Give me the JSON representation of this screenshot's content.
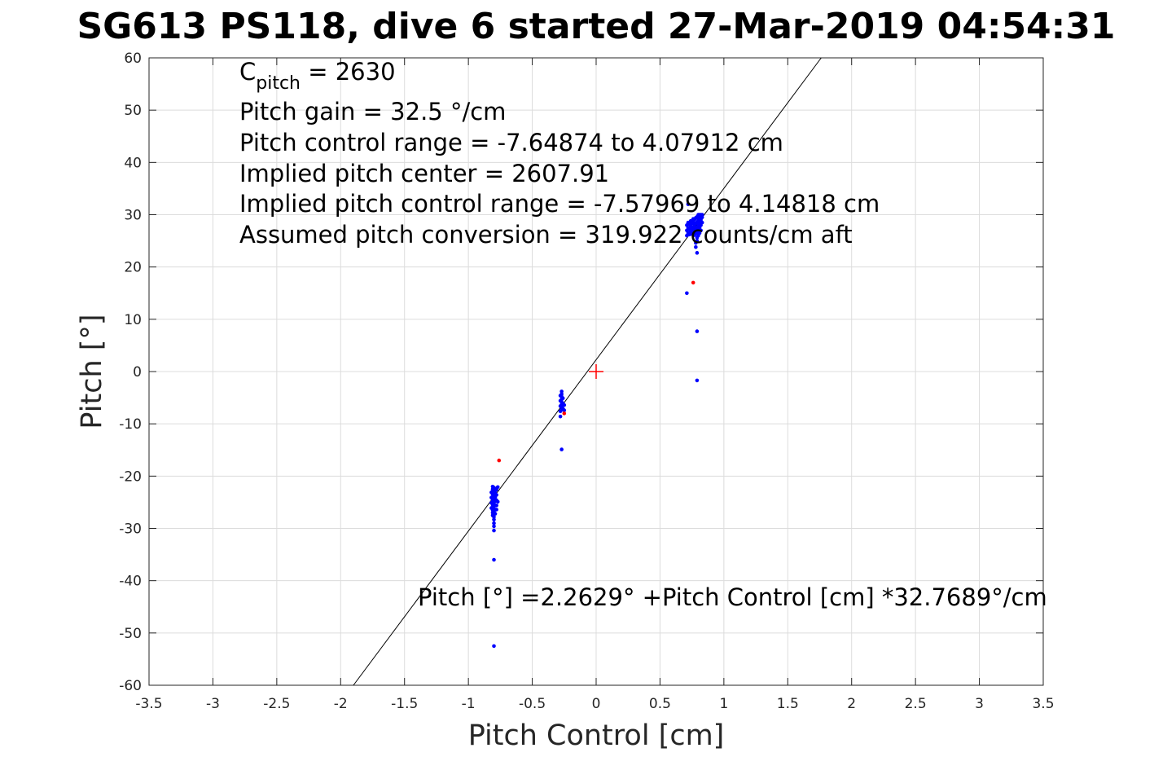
{
  "chart_data": {
    "type": "scatter",
    "title": "SG613 PS118, dive 6 started 27-Mar-2019 04:54:31",
    "xlabel": "Pitch Control [cm]",
    "ylabel": "Pitch [°]",
    "xlim": [
      -3.5,
      3.5
    ],
    "ylim": [
      -60,
      60
    ],
    "xticks": [
      -3.5,
      -3,
      -2.5,
      -2,
      -1.5,
      -1,
      -0.5,
      0,
      0.5,
      1,
      1.5,
      2,
      2.5,
      3,
      3.5
    ],
    "xtick_labels": [
      "-3.5",
      "-3",
      "-2.5",
      "-2",
      "-1.5",
      "-1",
      "-0.5",
      "0",
      "0.5",
      "1",
      "1.5",
      "2",
      "2.5",
      "3",
      "3.5"
    ],
    "yticks": [
      -60,
      -50,
      -40,
      -30,
      -20,
      -10,
      0,
      10,
      20,
      30,
      40,
      50,
      60
    ],
    "ytick_labels": [
      "-60",
      "-50",
      "-40",
      "-30",
      "-20",
      "-10",
      "0",
      "10",
      "20",
      "30",
      "40",
      "50",
      "60"
    ],
    "grid": true,
    "annotations": [
      {
        "main": "C",
        "sub": "pitch",
        "rest": " = 2630"
      },
      {
        "text": "Pitch gain = 32.5 °/cm"
      },
      {
        "text": "Pitch control range = -7.64874 to 4.07912 cm"
      },
      {
        "text": "Implied pitch center = 2607.91"
      },
      {
        "text": "Implied pitch control range = -7.57969 to 4.14818 cm"
      },
      {
        "text": "Assumed pitch conversion = 319.922 counts/cm aft"
      }
    ],
    "fit_label": "Pitch [°] =2.2629° +Pitch Control [cm] *32.7689°/cm",
    "fit_line": {
      "intercept": 2.2629,
      "slope": 32.7689,
      "color": "#000000"
    },
    "center_marker": {
      "x": 0,
      "y": 0,
      "color": "#ff0000"
    },
    "series": [
      {
        "color": "#0000ff",
        "points": [
          [
            -0.81,
            -22.0
          ],
          [
            -0.81,
            -22.5
          ],
          [
            -0.81,
            -23.0
          ],
          [
            -0.81,
            -23.5
          ],
          [
            -0.81,
            -24.0
          ],
          [
            -0.81,
            -24.5
          ],
          [
            -0.81,
            -25.0
          ],
          [
            -0.81,
            -25.5
          ],
          [
            -0.81,
            -26.0
          ],
          [
            -0.81,
            -26.5
          ],
          [
            -0.81,
            -27.0
          ],
          [
            -0.81,
            -27.5
          ],
          [
            -0.8,
            -22.2
          ],
          [
            -0.8,
            -22.8
          ],
          [
            -0.8,
            -23.3
          ],
          [
            -0.8,
            -23.8
          ],
          [
            -0.8,
            -24.3
          ],
          [
            -0.8,
            -24.8
          ],
          [
            -0.8,
            -25.3
          ],
          [
            -0.8,
            -25.8
          ],
          [
            -0.8,
            -26.3
          ],
          [
            -0.8,
            -26.8
          ],
          [
            -0.8,
            -27.3
          ],
          [
            -0.8,
            -27.8
          ],
          [
            -0.8,
            -28.3
          ],
          [
            -0.79,
            -22.4
          ],
          [
            -0.79,
            -23.2
          ],
          [
            -0.79,
            -24.0
          ],
          [
            -0.79,
            -24.8
          ],
          [
            -0.79,
            -25.6
          ],
          [
            -0.79,
            -26.4
          ],
          [
            -0.79,
            -27.2
          ],
          [
            -0.82,
            -23.1
          ],
          [
            -0.82,
            -24.1
          ],
          [
            -0.82,
            -25.1
          ],
          [
            -0.82,
            -26.1
          ],
          [
            -0.78,
            -22.6
          ],
          [
            -0.78,
            -23.6
          ],
          [
            -0.78,
            -24.6
          ],
          [
            -0.78,
            -25.6
          ],
          [
            -0.78,
            -26.4
          ],
          [
            -0.77,
            -22.1
          ],
          [
            -0.77,
            -24.9
          ],
          [
            -0.8,
            -29.0
          ],
          [
            -0.8,
            -29.6
          ],
          [
            -0.8,
            -30.4
          ],
          [
            -0.8,
            -36.0
          ],
          [
            -0.8,
            -52.5
          ],
          [
            -0.27,
            -3.8
          ],
          [
            -0.27,
            -4.3
          ],
          [
            -0.27,
            -4.8
          ],
          [
            -0.27,
            -5.3
          ],
          [
            -0.27,
            -5.8
          ],
          [
            -0.27,
            -6.3
          ],
          [
            -0.27,
            -6.8
          ],
          [
            -0.27,
            -7.3
          ],
          [
            -0.28,
            -4.6
          ],
          [
            -0.28,
            -5.6
          ],
          [
            -0.28,
            -6.6
          ],
          [
            -0.28,
            -7.6
          ],
          [
            -0.28,
            -8.6
          ],
          [
            -0.26,
            -5.1
          ],
          [
            -0.26,
            -6.1
          ],
          [
            -0.26,
            -7.1
          ],
          [
            -0.25,
            -6.4
          ],
          [
            -0.25,
            -7.4
          ],
          [
            -0.27,
            -14.9
          ],
          [
            0.71,
            26.0
          ],
          [
            0.71,
            27.0
          ],
          [
            0.71,
            28.0
          ],
          [
            0.72,
            26.5
          ],
          [
            0.72,
            27.5
          ],
          [
            0.72,
            28.5
          ],
          [
            0.72,
            32.0
          ],
          [
            0.73,
            26.2
          ],
          [
            0.73,
            27.2
          ],
          [
            0.73,
            28.2
          ],
          [
            0.74,
            26.8
          ],
          [
            0.74,
            27.8
          ],
          [
            0.74,
            28.8
          ],
          [
            0.75,
            26.3
          ],
          [
            0.75,
            27.3
          ],
          [
            0.75,
            28.3
          ],
          [
            0.76,
            26.6
          ],
          [
            0.76,
            27.6
          ],
          [
            0.76,
            28.6
          ],
          [
            0.76,
            29.2
          ],
          [
            0.77,
            26.1
          ],
          [
            0.77,
            27.1
          ],
          [
            0.77,
            28.1
          ],
          [
            0.77,
            29.1
          ],
          [
            0.78,
            26.4
          ],
          [
            0.78,
            27.4
          ],
          [
            0.78,
            28.4
          ],
          [
            0.78,
            29.4
          ],
          [
            0.79,
            25.6
          ],
          [
            0.79,
            26.6
          ],
          [
            0.79,
            27.6
          ],
          [
            0.79,
            28.6
          ],
          [
            0.79,
            29.6
          ],
          [
            0.8,
            26.0
          ],
          [
            0.8,
            27.0
          ],
          [
            0.8,
            28.0
          ],
          [
            0.8,
            29.0
          ],
          [
            0.8,
            30.0
          ],
          [
            0.81,
            26.5
          ],
          [
            0.81,
            27.5
          ],
          [
            0.81,
            28.5
          ],
          [
            0.81,
            29.5
          ],
          [
            0.81,
            30.0
          ],
          [
            0.82,
            27.0
          ],
          [
            0.82,
            28.0
          ],
          [
            0.82,
            29.0
          ],
          [
            0.82,
            30.0
          ],
          [
            0.83,
            28.5
          ],
          [
            0.83,
            29.5
          ],
          [
            0.83,
            30.0
          ],
          [
            0.78,
            24.6
          ],
          [
            0.78,
            23.8
          ],
          [
            0.79,
            25.0
          ],
          [
            0.79,
            22.7
          ],
          [
            0.71,
            15.0
          ],
          [
            0.79,
            7.7
          ],
          [
            0.79,
            -1.7
          ]
        ]
      },
      {
        "color": "#ff0000",
        "points": [
          [
            -0.76,
            -17.0
          ],
          [
            -0.25,
            -8.0
          ],
          [
            0.76,
            17.0
          ]
        ]
      }
    ]
  }
}
